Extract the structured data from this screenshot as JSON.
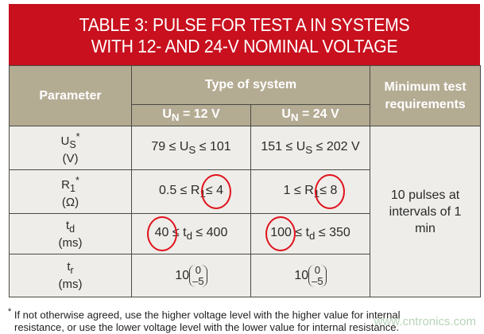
{
  "title": {
    "line1": "TABLE 3: PULSE FOR TEST A IN SYSTEMS",
    "line2": "WITH 12- AND 24-V NOMINAL VOLTAGE"
  },
  "header": {
    "parameter": "Parameter",
    "type_of_system": "Type of system",
    "un12": "U",
    "un12_sub": "N",
    "un12_rest": " = 12 V",
    "un24": "U",
    "un24_sub": "N",
    "un24_rest": " = 24 V",
    "minimum": "Minimum test requirements"
  },
  "rows": [
    {
      "param": "U",
      "param_sub": "S",
      "param_sup": "*",
      "unit": "(V)",
      "v12": "79 ≤ U",
      "v12_sub": "S",
      "v12_rest": " ≤ 101",
      "v24": "151 ≤ U",
      "v24_sub": "S",
      "v24_rest": " ≤ 202 V"
    },
    {
      "param": "R",
      "param_sub": "1",
      "param_sup": "*",
      "unit": "(Ω)",
      "v12": "0.5 ≤ R",
      "v12_sub": "1",
      "v12_circled": "≤ 4",
      "v24": "1 ≤ R",
      "v24_sub": "1",
      "v24_circled": "≤ 8"
    },
    {
      "param": "t",
      "param_sub": "d",
      "unit": "(ms)",
      "v12_circled": "40",
      "v12_rest": " ≤ t",
      "v12_sub": "d",
      "v12_end": " ≤ 400",
      "v24_circled": "100",
      "v24_rest": " ≤ t",
      "v24_sub": "d",
      "v24_end": " ≤ 350"
    },
    {
      "param": "t",
      "param_sub": "r",
      "unit": "(ms)",
      "v12": "10",
      "v12_top": "0",
      "v12_bottom": "–5",
      "v24": "10",
      "v24_top": "0",
      "v24_bottom": "–5"
    }
  ],
  "requirement": "10 pulses at intervals of 1 min",
  "footnote": {
    "mark": "*",
    "text1": "If not otherwise agreed, use the higher voltage level with the higher value for internal",
    "text2": "resistance, or use the lower voltage level with the lower value for internal resistance."
  },
  "watermark": "www.cntronics.com",
  "colors": {
    "title_bg": "#c8101e",
    "header_bg": "#b4ab93",
    "body_bg": "#eeede9",
    "circle": "#e0121c"
  }
}
